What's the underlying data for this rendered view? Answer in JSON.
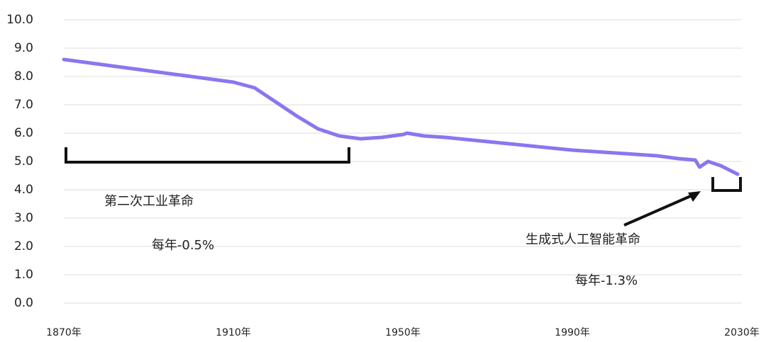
{
  "chart_data": {
    "type": "line",
    "x": [
      1870,
      1880,
      1890,
      1900,
      1905,
      1910,
      1915,
      1920,
      1925,
      1930,
      1935,
      1940,
      1945,
      1950,
      1951,
      1955,
      1960,
      1970,
      1980,
      1990,
      2000,
      2010,
      2015,
      2019,
      2020,
      2022,
      2025,
      2029
    ],
    "series": [
      {
        "color": "#8878ee",
        "values": [
          8.6,
          8.4,
          8.2,
          8.0,
          7.9,
          7.8,
          7.6,
          7.1,
          6.6,
          6.15,
          5.9,
          5.8,
          5.85,
          5.95,
          6.0,
          5.9,
          5.85,
          5.7,
          5.55,
          5.4,
          5.3,
          5.2,
          5.1,
          5.05,
          4.8,
          5.0,
          4.85,
          4.55
        ]
      }
    ],
    "xlim": [
      1870,
      2030
    ],
    "xticks": [
      {
        "value": 1870,
        "label": "1870年"
      },
      {
        "value": 1910,
        "label": "1910年"
      },
      {
        "value": 1950,
        "label": "1950年"
      },
      {
        "value": 1990,
        "label": "1990年"
      },
      {
        "value": 2030,
        "label": "2030年"
      }
    ],
    "ylim": [
      0,
      10
    ],
    "yticks": [
      {
        "value": 0,
        "label": "0.0"
      },
      {
        "value": 1,
        "label": "1.0"
      },
      {
        "value": 2,
        "label": "2.0"
      },
      {
        "value": 3,
        "label": "3.0"
      },
      {
        "value": 4,
        "label": "4.0"
      },
      {
        "value": 5,
        "label": "5.0"
      },
      {
        "value": 6,
        "label": "6.0"
      },
      {
        "value": 7,
        "label": "7.0"
      },
      {
        "value": 8,
        "label": "8.0"
      },
      {
        "value": 9,
        "label": "9.0"
      },
      {
        "value": 10,
        "label": "10.0"
      }
    ],
    "grid": true,
    "annotations": [
      "第二次工业革命",
      "每年-0.5%",
      "生成式人工智能革命",
      "每年-1.3%"
    ]
  }
}
